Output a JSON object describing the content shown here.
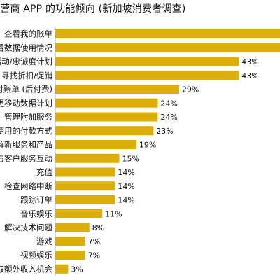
{
  "title": "运营商 APP 的功能倾向 (新加坡消费者调查)",
  "colors": {
    "bar": "#DBAE0A",
    "text": "#111111",
    "background": "#FFFFFF"
  },
  "chart_data": {
    "type": "bar",
    "orientation": "horizontal",
    "title": "运营商 APP 的功能倾向 (新加坡消费者调查)",
    "categories": [
      "查看我的账单",
      "查看数据使用情况",
      "参加活动/忠诚度计划",
      "寻找折扣/促销",
      "支付账单 (后付费)",
      "变更移动数据计划",
      "管理附加服务",
      "更改使用的付款方式",
      "了解新服务和产品",
      "与客户服务互动",
      "充值",
      "检查网络中断",
      "跟踪订单",
      "音乐娱乐",
      "解决技术问题",
      "游戏",
      "视频娱乐",
      "赚取额外收入机会"
    ],
    "values": [
      null,
      null,
      43,
      43,
      29,
      24,
      24,
      23,
      19,
      15,
      14,
      14,
      14,
      11,
      8,
      7,
      7,
      3
    ],
    "value_labels": [
      "",
      "",
      "43%",
      "43%",
      "29%",
      "24%",
      "24%",
      "23%",
      "19%",
      "15%",
      "14%",
      "14%",
      "14%",
      "11%",
      "8%",
      "7%",
      "7%",
      "3%"
    ],
    "unit": "%",
    "grid": false,
    "legend": "none"
  }
}
